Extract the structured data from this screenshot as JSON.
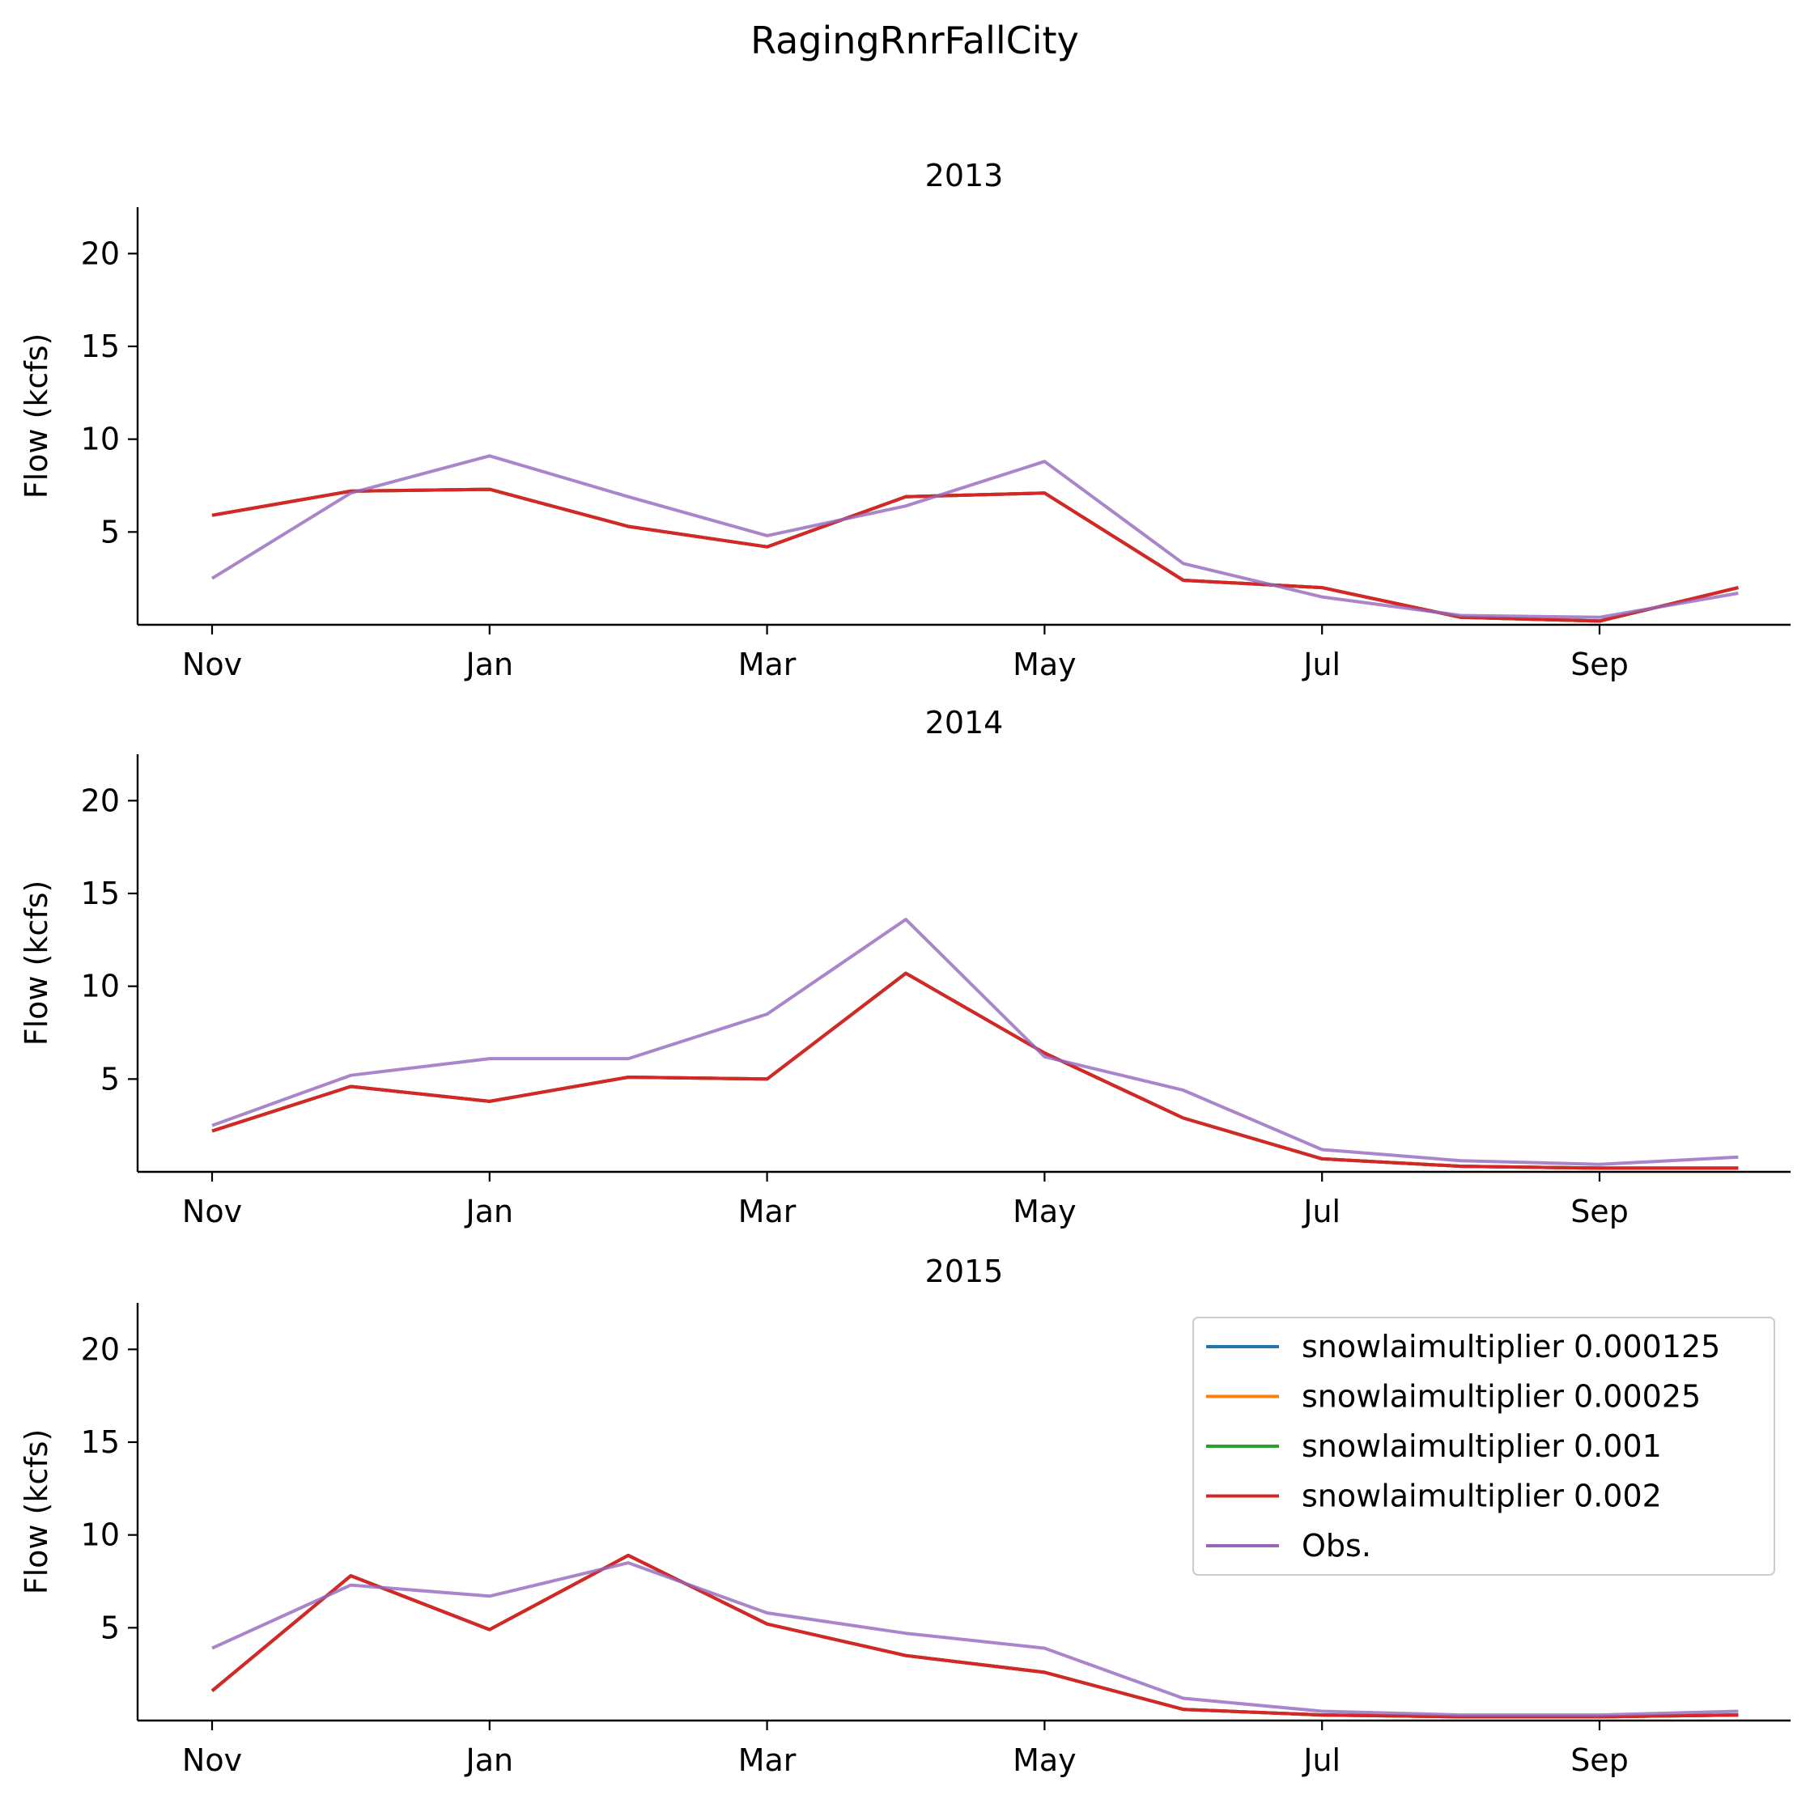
{
  "figure_title": "RagingRnrFallCity",
  "chart_data": [
    {
      "type": "line",
      "title": "2013",
      "xlabel": "",
      "ylabel": "Flow (kcfs)",
      "ylim": [
        0,
        22.5
      ],
      "yticks": [
        5,
        10,
        15,
        20
      ],
      "x_tick_labels": [
        "Nov",
        "Jan",
        "Mar",
        "May",
        "Jul",
        "Sep"
      ],
      "x": [
        0,
        1,
        2,
        3,
        4,
        5,
        6,
        7,
        8,
        9,
        10,
        11
      ],
      "series": [
        {
          "name": "snowlaimultiplier 0.000125",
          "color": "#1f77b4",
          "values": [
            5.9,
            7.2,
            7.3,
            5.3,
            4.2,
            6.9,
            7.1,
            2.4,
            2.0,
            0.4,
            0.2,
            2.0
          ]
        },
        {
          "name": "snowlaimultiplier 0.00025",
          "color": "#ff7f0e",
          "values": [
            5.9,
            7.2,
            7.3,
            5.3,
            4.2,
            6.9,
            7.1,
            2.4,
            2.0,
            0.4,
            0.2,
            2.0
          ]
        },
        {
          "name": "snowlaimultiplier 0.001",
          "color": "#2ca02c",
          "values": [
            5.9,
            7.2,
            7.3,
            5.3,
            4.2,
            6.9,
            7.1,
            2.4,
            2.0,
            0.4,
            0.2,
            2.0
          ]
        },
        {
          "name": "snowlaimultiplier 0.002",
          "color": "#d62728",
          "values": [
            5.9,
            7.2,
            7.3,
            5.3,
            4.2,
            6.9,
            7.1,
            2.4,
            2.0,
            0.4,
            0.2,
            2.0
          ]
        },
        {
          "name": "Obs.",
          "color": "#9467bd",
          "values": [
            2.5,
            7.1,
            9.1,
            6.9,
            4.8,
            6.4,
            8.8,
            3.3,
            1.5,
            0.5,
            0.4,
            1.7
          ]
        }
      ]
    },
    {
      "type": "line",
      "title": "2014",
      "xlabel": "",
      "ylabel": "Flow (kcfs)",
      "ylim": [
        0,
        22.5
      ],
      "yticks": [
        5,
        10,
        15,
        20
      ],
      "x_tick_labels": [
        "Nov",
        "Jan",
        "Mar",
        "May",
        "Jul",
        "Sep"
      ],
      "x": [
        0,
        1,
        2,
        3,
        4,
        5,
        6,
        7,
        8,
        9,
        10,
        11
      ],
      "series": [
        {
          "name": "snowlaimultiplier 0.000125",
          "color": "#1f77b4",
          "values": [
            2.2,
            4.6,
            3.8,
            5.1,
            5.0,
            10.7,
            6.4,
            2.9,
            0.7,
            0.3,
            0.2,
            0.2
          ]
        },
        {
          "name": "snowlaimultiplier 0.00025",
          "color": "#ff7f0e",
          "values": [
            2.2,
            4.6,
            3.8,
            5.1,
            5.0,
            10.7,
            6.4,
            2.9,
            0.7,
            0.3,
            0.2,
            0.2
          ]
        },
        {
          "name": "snowlaimultiplier 0.001",
          "color": "#2ca02c",
          "values": [
            2.2,
            4.6,
            3.8,
            5.1,
            5.0,
            10.7,
            6.4,
            2.9,
            0.7,
            0.3,
            0.2,
            0.2
          ]
        },
        {
          "name": "snowlaimultiplier 0.002",
          "color": "#d62728",
          "values": [
            2.2,
            4.6,
            3.8,
            5.1,
            5.0,
            10.7,
            6.4,
            2.9,
            0.7,
            0.3,
            0.2,
            0.2
          ]
        },
        {
          "name": "Obs.",
          "color": "#9467bd",
          "values": [
            2.5,
            5.2,
            6.1,
            6.1,
            8.5,
            13.6,
            6.2,
            4.4,
            1.2,
            0.6,
            0.4,
            0.8
          ]
        }
      ]
    },
    {
      "type": "line",
      "title": "2015",
      "xlabel": "",
      "ylabel": "Flow (kcfs)",
      "ylim": [
        0,
        22.5
      ],
      "yticks": [
        5,
        10,
        15,
        20
      ],
      "x_tick_labels": [
        "Nov",
        "Jan",
        "Mar",
        "May",
        "Jul",
        "Sep"
      ],
      "x": [
        0,
        1,
        2,
        3,
        4,
        5,
        6,
        7,
        8,
        9,
        10,
        11
      ],
      "legend": "top-right",
      "series": [
        {
          "name": "snowlaimultiplier 0.000125",
          "color": "#1f77b4",
          "values": [
            1.6,
            7.8,
            4.9,
            8.9,
            5.2,
            3.5,
            2.6,
            0.6,
            0.3,
            0.2,
            0.2,
            0.3
          ]
        },
        {
          "name": "snowlaimultiplier 0.00025",
          "color": "#ff7f0e",
          "values": [
            1.6,
            7.8,
            4.9,
            8.9,
            5.2,
            3.5,
            2.6,
            0.6,
            0.3,
            0.2,
            0.2,
            0.3
          ]
        },
        {
          "name": "snowlaimultiplier 0.001",
          "color": "#2ca02c",
          "values": [
            1.6,
            7.8,
            4.9,
            8.9,
            5.2,
            3.5,
            2.6,
            0.6,
            0.3,
            0.2,
            0.2,
            0.3
          ]
        },
        {
          "name": "snowlaimultiplier 0.002",
          "color": "#d62728",
          "values": [
            1.6,
            7.8,
            4.9,
            8.9,
            5.2,
            3.5,
            2.6,
            0.6,
            0.3,
            0.2,
            0.2,
            0.3
          ]
        },
        {
          "name": "Obs.",
          "color": "#9467bd",
          "values": [
            3.9,
            7.3,
            6.7,
            8.5,
            5.8,
            4.7,
            3.9,
            1.2,
            0.5,
            0.3,
            0.3,
            0.5
          ]
        }
      ]
    }
  ]
}
